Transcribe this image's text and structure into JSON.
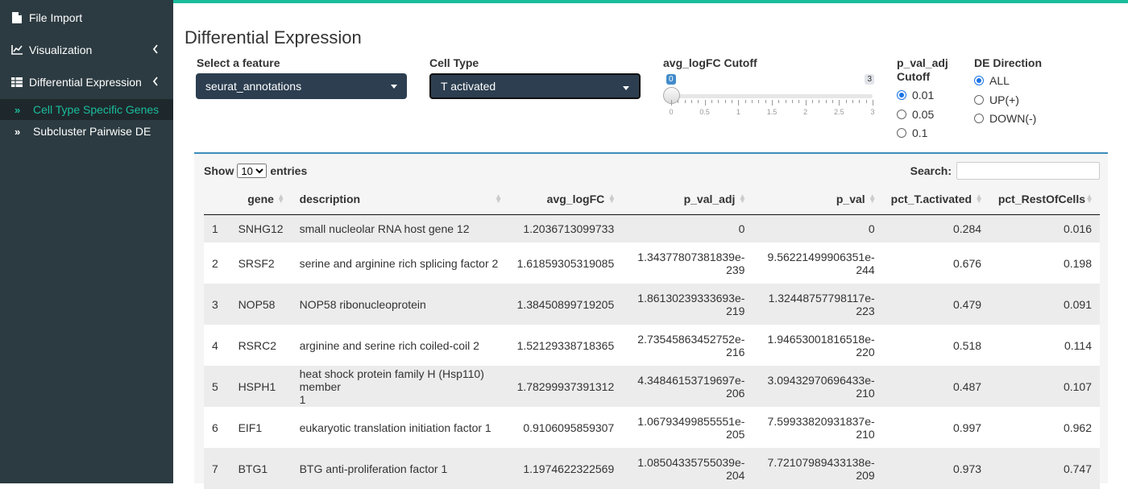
{
  "sidebar": {
    "items": [
      {
        "label": "File Import",
        "icon": "file-icon"
      },
      {
        "label": "Visualization",
        "icon": "line-chart-icon"
      },
      {
        "label": "Differential Expression",
        "icon": "table-icon"
      }
    ],
    "subitems": [
      {
        "label": "Cell Type Specific Genes",
        "active": true
      },
      {
        "label": "Subcluster Pairwise DE",
        "active": false
      }
    ]
  },
  "main": {
    "title": "Differential Expression",
    "feature": {
      "label": "Select a feature",
      "value": "seurat_annotations"
    },
    "celltype": {
      "label": "Cell Type",
      "value": "T activated"
    },
    "slider": {
      "label": "avg_logFC Cutoff",
      "value": "0",
      "max": "3",
      "ticks": [
        "0",
        "0.5",
        "1",
        "1.5",
        "2",
        "2.5",
        "3"
      ]
    },
    "pval": {
      "label_line1": "p_val_adj",
      "label_line2": "Cutoff",
      "options": [
        "0.01",
        "0.05",
        "0.1"
      ],
      "selected": 0
    },
    "direction": {
      "label": "DE Direction",
      "options": [
        "ALL",
        "UP(+)",
        "DOWN(-)"
      ],
      "selected": 0
    }
  },
  "table": {
    "show_label": "Show",
    "entries_value": "10",
    "entries_label": "entries",
    "search_label": "Search:",
    "columns": [
      "",
      "gene",
      "description",
      "avg_logFC",
      "p_val_adj",
      "p_val",
      "pct_T.activated",
      "pct_RestOfCells"
    ],
    "rows": [
      {
        "idx": "1",
        "gene": "SNHG12",
        "desc": "small nucleolar RNA host gene 12",
        "desc2": "",
        "logfc": "1.2036713099733",
        "padj1": "0",
        "padj2": "",
        "pval1": "0",
        "pval2": "",
        "pct1": "0.284",
        "pct2": "0.016"
      },
      {
        "idx": "2",
        "gene": "SRSF2",
        "desc": "serine and arginine rich splicing factor 2",
        "desc2": "",
        "logfc": "1.61859305319085",
        "padj1": "1.34377807381839e-",
        "padj2": "239",
        "pval1": "9.56221499906351e-",
        "pval2": "244",
        "pct1": "0.676",
        "pct2": "0.198"
      },
      {
        "idx": "3",
        "gene": "NOP58",
        "desc": "NOP58 ribonucleoprotein",
        "desc2": "",
        "logfc": "1.38450899719205",
        "padj1": "1.86130239333693e-",
        "padj2": "219",
        "pval1": "1.32448757798117e-",
        "pval2": "223",
        "pct1": "0.479",
        "pct2": "0.091"
      },
      {
        "idx": "4",
        "gene": "RSRC2",
        "desc": "arginine and serine rich coiled-coil 2",
        "desc2": "",
        "logfc": "1.52129338718365",
        "padj1": "2.73545863452752e-",
        "padj2": "216",
        "pval1": "1.94653001816518e-",
        "pval2": "220",
        "pct1": "0.518",
        "pct2": "0.114"
      },
      {
        "idx": "5",
        "gene": "HSPH1",
        "desc": "heat shock protein family H (Hsp110) member",
        "desc2": "1",
        "logfc": "1.78299937391312",
        "padj1": "4.34846153719697e-",
        "padj2": "206",
        "pval1": "3.09432970696433e-",
        "pval2": "210",
        "pct1": "0.487",
        "pct2": "0.107"
      },
      {
        "idx": "6",
        "gene": "EIF1",
        "desc": "eukaryotic translation initiation factor 1",
        "desc2": "",
        "logfc": "0.9106095859307",
        "padj1": "1.06793499855551e-",
        "padj2": "205",
        "pval1": "7.59933820931837e-",
        "pval2": "210",
        "pct1": "0.997",
        "pct2": "0.962"
      },
      {
        "idx": "7",
        "gene": "BTG1",
        "desc": "BTG anti-proliferation factor 1",
        "desc2": "",
        "logfc": "1.1974622322569",
        "padj1": "1.08504335755039e-",
        "padj2": "204",
        "pval1": "7.72107989433138e-",
        "pval2": "209",
        "pct1": "0.973",
        "pct2": "0.747"
      }
    ]
  }
}
